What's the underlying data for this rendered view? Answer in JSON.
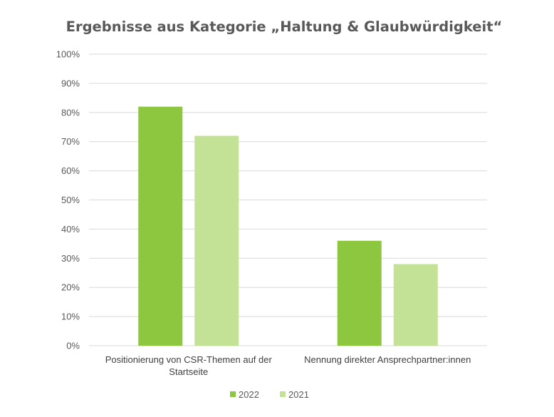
{
  "chart_data": {
    "type": "bar",
    "title": "Ergebnisse aus Kategorie „Haltung & Glaubwürdigkeit“",
    "categories": [
      [
        "Positionierung von CSR-Themen auf der",
        "Startseite"
      ],
      [
        "Nennung direkter Ansprechpartner:innen"
      ]
    ],
    "series": [
      {
        "name": "2022",
        "values": [
          82,
          36
        ],
        "color": "#8dc63f"
      },
      {
        "name": "2021",
        "values": [
          72,
          28
        ],
        "color": "#c3e296"
      }
    ],
    "ylim": [
      0,
      100
    ],
    "yticks": [
      "0%",
      "10%",
      "20%",
      "30%",
      "40%",
      "50%",
      "60%",
      "70%",
      "80%",
      "90%",
      "100%"
    ],
    "xlabel": "",
    "ylabel": "",
    "grid": true,
    "legend": "bottom",
    "gridline_color": "#d9d9d9"
  }
}
